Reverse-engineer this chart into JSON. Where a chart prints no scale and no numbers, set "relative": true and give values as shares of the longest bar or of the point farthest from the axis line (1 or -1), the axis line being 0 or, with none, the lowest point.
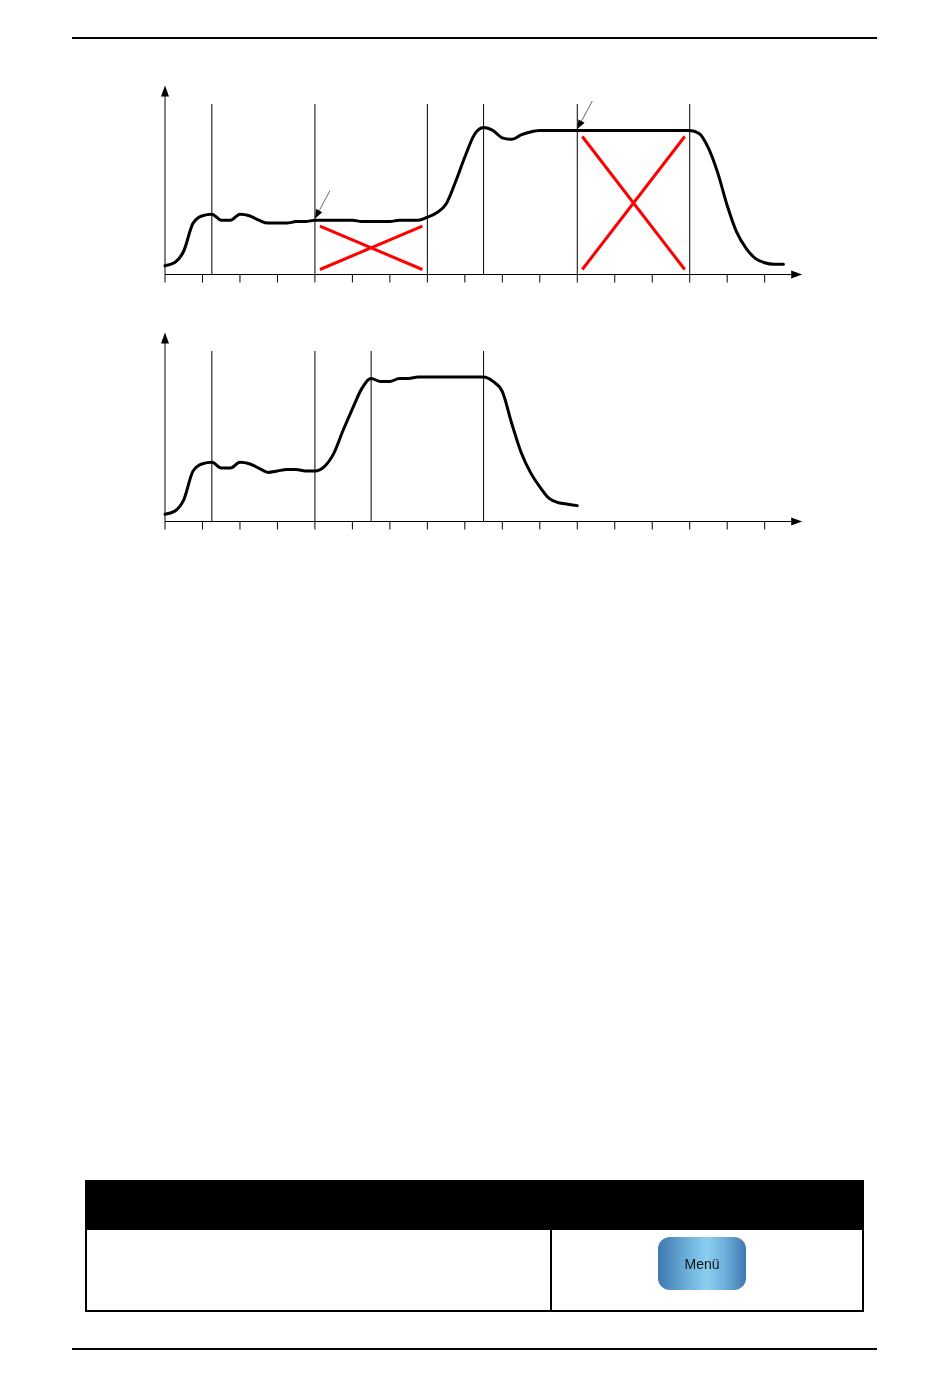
{
  "chart_data": [
    {
      "type": "line",
      "relative": true,
      "color": "#000000",
      "categories": [
        null,
        null,
        null,
        null,
        null,
        null,
        null,
        null,
        null,
        null,
        null,
        null,
        null,
        null,
        null,
        null,
        null,
        null,
        null,
        null,
        null,
        null,
        null,
        null,
        null,
        null,
        null,
        null,
        null,
        null,
        null,
        null,
        null,
        null,
        null,
        null,
        null,
        null,
        null,
        null,
        null,
        null,
        null,
        null,
        null,
        null,
        null,
        null,
        null,
        null,
        null,
        null,
        null,
        null,
        null,
        null,
        null,
        null,
        null,
        null,
        null,
        null,
        null,
        null,
        null,
        null,
        null
      ],
      "values": [
        0.06,
        0.08,
        0.16,
        0.35,
        0.4,
        0.41,
        0.37,
        0.37,
        0.41,
        0.4,
        0.37,
        0.35,
        0.35,
        0.35,
        0.36,
        0.36,
        0.37,
        0.37,
        0.37,
        0.37,
        0.37,
        0.36,
        0.36,
        0.36,
        0.36,
        0.37,
        0.37,
        0.37,
        0.39,
        0.42,
        0.48,
        0.63,
        0.8,
        0.95,
        1.0,
        0.98,
        0.93,
        0.92,
        0.95,
        0.97,
        0.98,
        0.98,
        0.98,
        0.98,
        0.98,
        0.98,
        0.98,
        0.98,
        0.98,
        0.98,
        0.98,
        0.98,
        0.98,
        0.98,
        0.98,
        0.98,
        0.98,
        0.96,
        0.86,
        0.69,
        0.47,
        0.29,
        0.18,
        0.11,
        0.08,
        0.07,
        0.07
      ]
    },
    {
      "type": "line",
      "relative": true,
      "color": "#000000",
      "categories": [
        null,
        null,
        null,
        null,
        null,
        null,
        null,
        null,
        null,
        null,
        null,
        null,
        null,
        null,
        null,
        null,
        null,
        null,
        null,
        null,
        null,
        null,
        null,
        null,
        null,
        null,
        null,
        null,
        null,
        null,
        null,
        null,
        null,
        null,
        null,
        null,
        null,
        null,
        null,
        null,
        null,
        null,
        null,
        null,
        null,
        null,
        null,
        null,
        null,
        null,
        null,
        null,
        null,
        null,
        null,
        null,
        null,
        null,
        null,
        null,
        null,
        null,
        null,
        null,
        null,
        null,
        null
      ],
      "values": [
        0.05,
        0.07,
        0.15,
        0.35,
        0.4,
        0.41,
        0.37,
        0.37,
        0.41,
        0.4,
        0.37,
        0.34,
        0.35,
        0.36,
        0.36,
        0.35,
        0.35,
        0.38,
        0.47,
        0.63,
        0.78,
        0.92,
        0.99,
        0.97,
        0.97,
        0.99,
        0.99,
        1.0,
        1.0,
        1.0,
        1.0,
        1.0,
        1.0,
        1.0,
        1.0,
        0.97,
        0.9,
        0.68,
        0.48,
        0.34,
        0.24,
        0.16,
        0.13,
        0.12,
        0.11,
        null,
        null,
        null,
        null,
        null,
        null,
        null,
        null,
        null,
        null,
        null,
        null,
        null,
        null,
        null,
        null,
        null,
        null,
        null,
        null,
        null,
        null
      ]
    },
    {
      "type": "other",
      "annotations": [
        "Menü"
      ]
    }
  ]
}
